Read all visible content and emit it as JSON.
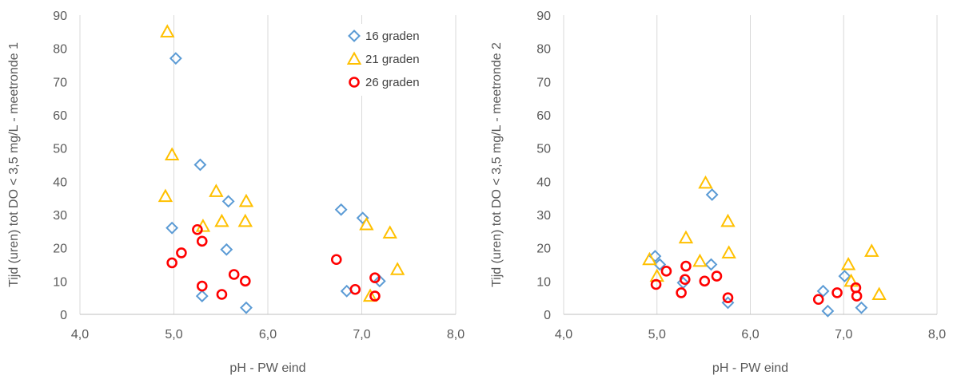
{
  "chart_data": [
    {
      "type": "scatter",
      "xlabel": "pH - PW eind",
      "ylabel": "Tijd (uren) tot DO < 3,5 mg/L - meetronde 1",
      "xlim": [
        4.0,
        8.0
      ],
      "ylim": [
        0,
        90
      ],
      "x_ticks": [
        "4,0",
        "5,0",
        "6,0",
        "7,0",
        "8,0"
      ],
      "y_ticks": [
        "0",
        "10",
        "20",
        "30",
        "40",
        "50",
        "60",
        "70",
        "80",
        "90"
      ],
      "grid": "vertical",
      "legend_position": "top-right",
      "series": [
        {
          "name": "16 graden",
          "marker": "diamond",
          "color": "#5B9BD5",
          "points": [
            [
              5.02,
              77
            ],
            [
              5.28,
              45
            ],
            [
              4.98,
              26
            ],
            [
              5.58,
              34
            ],
            [
              5.56,
              19.5
            ],
            [
              5.3,
              5.5
            ],
            [
              5.77,
              2
            ],
            [
              6.78,
              31.5
            ],
            [
              7.01,
              29
            ],
            [
              6.84,
              7
            ],
            [
              7.19,
              10
            ]
          ]
        },
        {
          "name": "21 graden",
          "marker": "triangle",
          "color": "#FFC000",
          "points": [
            [
              4.93,
              85
            ],
            [
              4.98,
              48
            ],
            [
              4.91,
              35.5
            ],
            [
              5.45,
              37
            ],
            [
              5.31,
              26.5
            ],
            [
              5.51,
              28
            ],
            [
              5.77,
              34
            ],
            [
              5.76,
              28
            ],
            [
              7.05,
              27
            ],
            [
              7.3,
              24.5
            ],
            [
              7.38,
              13.5
            ],
            [
              7.09,
              5.5
            ]
          ]
        },
        {
          "name": "26 graden",
          "marker": "circle",
          "color": "#FF0000",
          "points": [
            [
              5.25,
              25.5
            ],
            [
              5.3,
              22
            ],
            [
              5.08,
              18.5
            ],
            [
              4.98,
              15.5
            ],
            [
              5.3,
              8.5
            ],
            [
              5.51,
              6
            ],
            [
              5.64,
              12
            ],
            [
              5.76,
              10
            ],
            [
              6.73,
              16.5
            ],
            [
              6.93,
              7.5
            ],
            [
              7.14,
              11
            ],
            [
              7.14,
              5.5
            ]
          ]
        }
      ]
    },
    {
      "type": "scatter",
      "xlabel": "pH - PW eind",
      "ylabel": "Tijd (uren) tot DO < 3,5 mg/L - meetronde 2",
      "xlim": [
        4.0,
        8.0
      ],
      "ylim": [
        0,
        90
      ],
      "x_ticks": [
        "4,0",
        "5,0",
        "6,0",
        "7,0",
        "8,0"
      ],
      "y_ticks": [
        "0",
        "10",
        "20",
        "30",
        "40",
        "50",
        "60",
        "70",
        "80",
        "90"
      ],
      "grid": "vertical",
      "series": [
        {
          "marker": "diamond",
          "color": "#5B9BD5",
          "points": [
            [
              4.98,
              17.5
            ],
            [
              5.03,
              15
            ],
            [
              5.28,
              9.5
            ],
            [
              5.59,
              36
            ],
            [
              5.58,
              15
            ],
            [
              5.76,
              3.5
            ],
            [
              6.78,
              7
            ],
            [
              6.83,
              1
            ],
            [
              7.01,
              11.5
            ],
            [
              7.19,
              2
            ]
          ]
        },
        {
          "marker": "triangle",
          "color": "#FFC000",
          "points": [
            [
              4.92,
              16.5
            ],
            [
              5.0,
              11.5
            ],
            [
              5.31,
              23
            ],
            [
              5.52,
              39.5
            ],
            [
              5.46,
              16
            ],
            [
              5.76,
              28
            ],
            [
              5.77,
              18.5
            ],
            [
              7.05,
              15
            ],
            [
              7.3,
              19
            ],
            [
              7.38,
              6
            ],
            [
              7.08,
              10
            ]
          ]
        },
        {
          "marker": "circle",
          "color": "#FF0000",
          "points": [
            [
              5.1,
              13
            ],
            [
              4.99,
              9
            ],
            [
              5.31,
              14.5
            ],
            [
              5.3,
              10.5
            ],
            [
              5.26,
              6.5
            ],
            [
              5.51,
              10
            ],
            [
              5.64,
              11.5
            ],
            [
              5.76,
              5
            ],
            [
              6.73,
              4.5
            ],
            [
              6.93,
              6.5
            ],
            [
              7.13,
              8
            ],
            [
              7.14,
              5.5
            ]
          ]
        }
      ]
    }
  ]
}
